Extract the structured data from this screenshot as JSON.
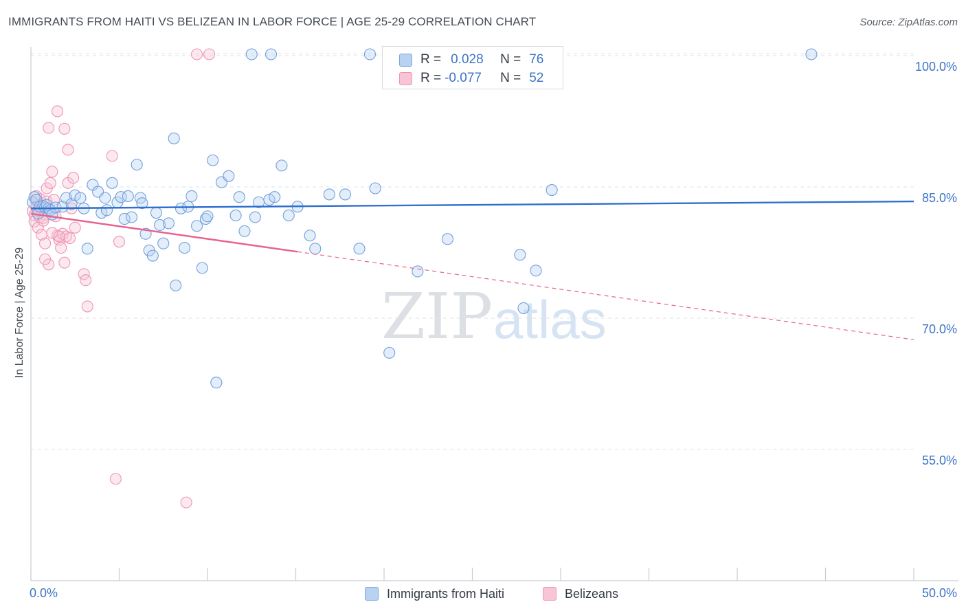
{
  "title": "IMMIGRANTS FROM HAITI VS BELIZEAN IN LABOR FORCE | AGE 25-29 CORRELATION CHART",
  "source": "Source: ZipAtlas.com",
  "watermark": {
    "zip": "ZIP",
    "atlas": "atlas"
  },
  "legend": {
    "r_label": "R =",
    "n_label": "N =",
    "rows": [
      {
        "r": "0.028",
        "n": "76"
      },
      {
        "r": "-0.077",
        "n": "52"
      }
    ]
  },
  "chart_data": {
    "type": "scatter",
    "title": "IMMIGRANTS FROM HAITI VS BELIZEAN IN LABOR FORCE | AGE 25-29 CORRELATION CHART",
    "xlabel": "",
    "ylabel": "In Labor Force | Age 25-29",
    "xlim": [
      0,
      50
    ],
    "ylim": [
      40,
      102
    ],
    "x_tick_labels": [
      "0.0%",
      "50.0%"
    ],
    "y_ticks": [
      100,
      85,
      70,
      55
    ],
    "y_tick_labels": [
      "100.0%",
      "85.0%",
      "70.0%",
      "55.0%"
    ],
    "grid": true,
    "legend_position": "top-center",
    "colors": {
      "haiti": "#6e9fdc",
      "belize": "#f08db0",
      "haiti_line": "#2f6fce",
      "belize_line": "#e8628f",
      "axis_text": "#3d74c7"
    },
    "series": [
      {
        "name": "Immigrants from Haiti",
        "color": "#6e9fdc",
        "r": 0.028,
        "n": 76,
        "trend": {
          "x": [
            0,
            50
          ],
          "y": [
            83.8,
            84.6
          ],
          "dashed_from_x": null
        },
        "points": [
          [
            0.1,
            84.5
          ],
          [
            0.2,
            85.1
          ],
          [
            0.3,
            84.8
          ],
          [
            0.4,
            83.2
          ],
          [
            0.5,
            84.0
          ],
          [
            0.7,
            84.1
          ],
          [
            0.8,
            83.9
          ],
          [
            0.9,
            84.2
          ],
          [
            1.0,
            83.8
          ],
          [
            1.1,
            83.6
          ],
          [
            1.2,
            83.1
          ],
          [
            1.4,
            83.9
          ],
          [
            1.8,
            84.0
          ],
          [
            2.0,
            85.0
          ],
          [
            2.3,
            84.3
          ],
          [
            2.5,
            85.3
          ],
          [
            2.8,
            85.0
          ],
          [
            3.0,
            83.8
          ],
          [
            3.2,
            79.2
          ],
          [
            3.5,
            86.5
          ],
          [
            3.8,
            85.7
          ],
          [
            4.0,
            83.3
          ],
          [
            4.2,
            85.0
          ],
          [
            4.3,
            83.6
          ],
          [
            4.6,
            86.7
          ],
          [
            4.9,
            84.5
          ],
          [
            5.1,
            85.1
          ],
          [
            5.3,
            82.6
          ],
          [
            5.5,
            85.2
          ],
          [
            5.7,
            82.8
          ],
          [
            6.0,
            88.8
          ],
          [
            6.2,
            85.0
          ],
          [
            6.3,
            84.4
          ],
          [
            6.5,
            80.9
          ],
          [
            6.7,
            79.0
          ],
          [
            6.9,
            78.4
          ],
          [
            7.1,
            83.3
          ],
          [
            7.3,
            81.9
          ],
          [
            7.5,
            79.8
          ],
          [
            7.8,
            82.1
          ],
          [
            8.1,
            91.8
          ],
          [
            8.2,
            75.0
          ],
          [
            8.5,
            83.8
          ],
          [
            8.7,
            79.3
          ],
          [
            8.9,
            84.0
          ],
          [
            9.1,
            85.2
          ],
          [
            9.4,
            81.8
          ],
          [
            9.7,
            77.0
          ],
          [
            9.9,
            82.6
          ],
          [
            10.0,
            82.9
          ],
          [
            10.3,
            89.3
          ],
          [
            10.5,
            63.9
          ],
          [
            10.8,
            86.8
          ],
          [
            11.2,
            87.5
          ],
          [
            11.6,
            83.0
          ],
          [
            11.8,
            85.1
          ],
          [
            12.1,
            81.2
          ],
          [
            12.7,
            82.8
          ],
          [
            12.9,
            84.5
          ],
          [
            13.5,
            84.8
          ],
          [
            13.8,
            85.1
          ],
          [
            14.2,
            88.7
          ],
          [
            14.6,
            83.0
          ],
          [
            15.1,
            84.0
          ],
          [
            15.8,
            80.7
          ],
          [
            16.1,
            79.2
          ],
          [
            16.9,
            85.4
          ],
          [
            17.8,
            85.4
          ],
          [
            18.6,
            79.2
          ],
          [
            19.5,
            86.1
          ],
          [
            20.3,
            67.3
          ],
          [
            21.9,
            76.6
          ],
          [
            23.6,
            80.3
          ],
          [
            27.7,
            78.5
          ],
          [
            27.9,
            72.4
          ],
          [
            28.6,
            76.7
          ],
          [
            29.5,
            85.9
          ]
        ],
        "points_top": [
          [
            12.5,
            100.0
          ],
          [
            13.6,
            100.0
          ],
          [
            19.2,
            100.0
          ],
          [
            44.2,
            100.0
          ]
        ]
      },
      {
        "name": "Belizeans",
        "color": "#f08db0",
        "r": -0.077,
        "n": 52,
        "trend": {
          "x": [
            0,
            50
          ],
          "y": [
            83.2,
            68.8
          ],
          "dashed_from_x": 15.1
        },
        "points": [
          [
            0.1,
            83.5
          ],
          [
            0.2,
            83.0
          ],
          [
            0.2,
            82.3
          ],
          [
            0.3,
            84.0
          ],
          [
            0.4,
            83.6
          ],
          [
            0.5,
            82.8
          ],
          [
            0.6,
            84.3
          ],
          [
            0.7,
            83.8
          ],
          [
            0.8,
            83.1
          ],
          [
            0.9,
            84.6
          ],
          [
            0.4,
            81.6
          ],
          [
            0.6,
            80.8
          ],
          [
            0.7,
            82.7
          ],
          [
            0.8,
            79.8
          ],
          [
            0.9,
            86.1
          ],
          [
            1.0,
            77.4
          ],
          [
            1.1,
            86.7
          ],
          [
            1.2,
            88.0
          ],
          [
            1.3,
            84.8
          ],
          [
            1.4,
            82.9
          ],
          [
            1.5,
            80.7
          ],
          [
            1.6,
            80.2
          ],
          [
            1.7,
            79.3
          ],
          [
            1.8,
            80.9
          ],
          [
            1.9,
            77.6
          ],
          [
            2.0,
            80.6
          ],
          [
            2.1,
            86.7
          ],
          [
            2.3,
            83.8
          ],
          [
            2.4,
            87.3
          ],
          [
            2.5,
            81.6
          ],
          [
            3.0,
            76.3
          ],
          [
            3.1,
            75.6
          ],
          [
            3.2,
            72.6
          ],
          [
            4.6,
            89.8
          ],
          [
            5.0,
            80.0
          ],
          [
            1.0,
            93.0
          ],
          [
            1.5,
            94.9
          ],
          [
            1.9,
            92.9
          ],
          [
            2.1,
            90.5
          ],
          [
            0.5,
            84.9
          ],
          [
            0.7,
            82.4
          ],
          [
            1.2,
            81.0
          ],
          [
            0.3,
            85.2
          ],
          [
            2.2,
            80.4
          ],
          [
            1.6,
            80.6
          ],
          [
            0.8,
            78.0
          ],
          [
            4.8,
            52.9
          ],
          [
            8.8,
            50.2
          ]
        ],
        "points_top": [
          [
            9.4,
            100.0
          ],
          [
            10.1,
            100.0
          ]
        ]
      }
    ]
  }
}
